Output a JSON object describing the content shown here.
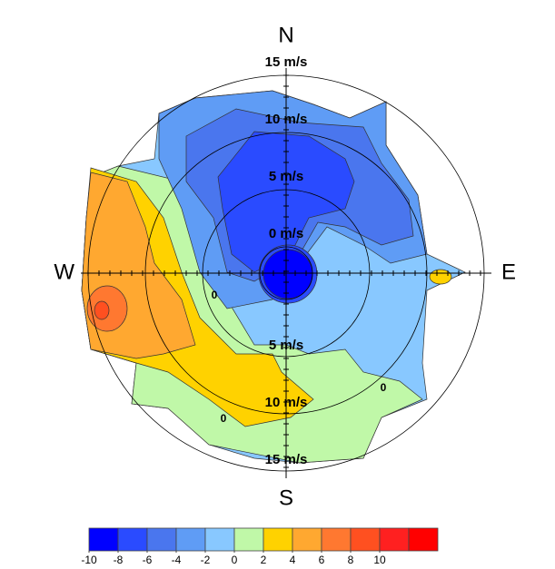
{
  "chart_data": {
    "type": "polar_contour",
    "directions": [
      "N",
      "E",
      "S",
      "W"
    ],
    "rlim": [
      -2.3,
      15
    ],
    "rticks": [
      {
        "value": 0,
        "label": "0 m/s"
      },
      {
        "value": 5,
        "label": "5 m/s"
      },
      {
        "value": 10,
        "label": "10 m/s"
      },
      {
        "value": 15,
        "label": "15 m/s"
      }
    ],
    "contour_labels": [
      0,
      0,
      0
    ],
    "clim": [
      -10,
      14
    ],
    "cticks": [
      -10,
      -8,
      -6,
      -4,
      -2,
      0,
      2,
      4,
      6,
      8,
      10
    ],
    "colors": [
      "#0000ff",
      "#2a4bff",
      "#4a76ee",
      "#5f9cf5",
      "#88c8ff",
      "#c0f8a8",
      "#ffd200",
      "#ffa830",
      "#ff7830",
      "#ff5020",
      "#ff2020",
      "#ff0000"
    ]
  }
}
